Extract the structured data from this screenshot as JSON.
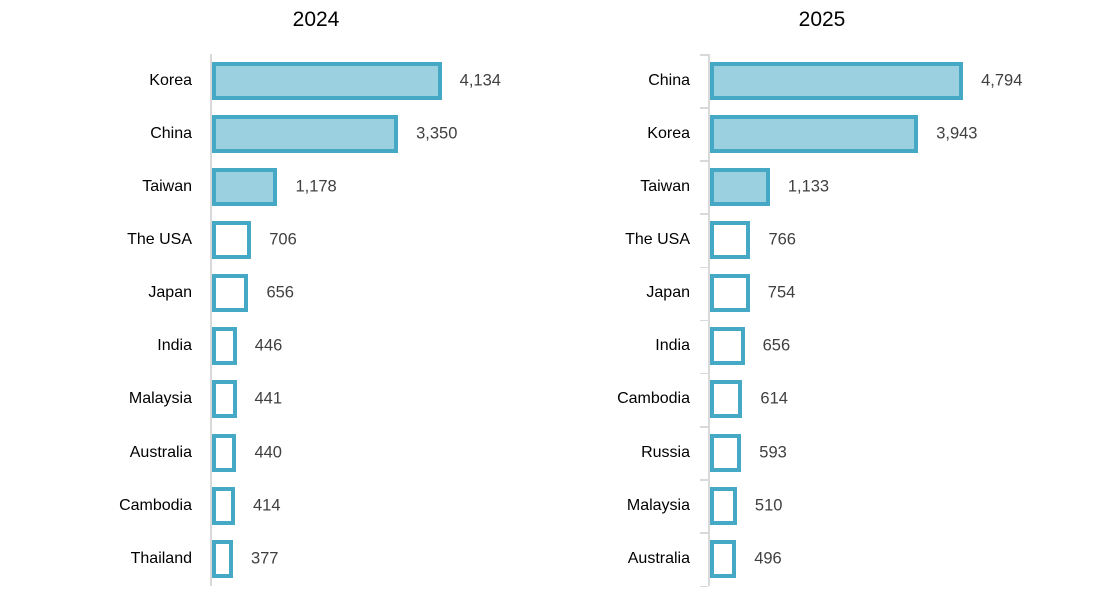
{
  "figure": {
    "background": "#ffffff",
    "description": "Two horizontal bar charts comparing country values for 2024 and 2025"
  },
  "colors": {
    "bar_fill": "#9AD0E0",
    "bar_border": "#45A8C4",
    "axis_line": "#D9D9D9",
    "value_label": "#404040",
    "category_label": "#000000",
    "title": "#000000"
  },
  "chart_data": [
    {
      "type": "bar",
      "orientation": "horizontal",
      "title": "2024",
      "categories": [
        "Korea",
        "China",
        "Taiwan",
        "The USA",
        "Japan",
        "India",
        "Malaysia",
        "Australia",
        "Cambodia",
        "Thailand"
      ],
      "values": [
        4134,
        3350,
        1178,
        706,
        656,
        446,
        441,
        440,
        414,
        377
      ],
      "value_labels": [
        "4,134",
        "3,350",
        "1,178",
        "706",
        "656",
        "446",
        "441",
        "440",
        "414",
        "377"
      ],
      "filled": [
        true,
        true,
        true,
        false,
        false,
        false,
        false,
        false,
        false,
        false
      ],
      "xlim": [
        0,
        4500
      ],
      "grid": false,
      "axis_ticks": false,
      "legend": "none",
      "sort": "descending"
    },
    {
      "type": "bar",
      "orientation": "horizontal",
      "title": "2025",
      "categories": [
        "China",
        "Korea",
        "Taiwan",
        "The USA",
        "Japan",
        "India",
        "Cambodia",
        "Russia",
        "Malaysia",
        "Australia"
      ],
      "values": [
        4794,
        3943,
        1133,
        766,
        754,
        656,
        614,
        593,
        510,
        496
      ],
      "value_labels": [
        "4,794",
        "3,943",
        "1,133",
        "766",
        "754",
        "656",
        "614",
        "593",
        "510",
        "496"
      ],
      "filled": [
        true,
        true,
        true,
        false,
        false,
        false,
        false,
        false,
        false,
        false
      ],
      "xlim": [
        0,
        5000
      ],
      "grid": false,
      "axis_ticks": true,
      "legend": "none",
      "sort": "descending"
    }
  ]
}
